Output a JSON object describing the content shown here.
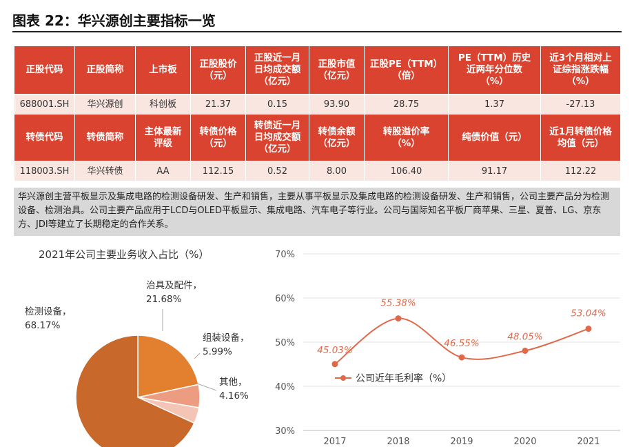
{
  "title": "图表 22：华兴源创主要指标一览",
  "table": {
    "header1": [
      "正股代码",
      "正股简称",
      "上市板",
      "正股股价\n（元）",
      "正股近一月\n日均成交额\n（亿元）",
      "正股市值\n（亿元）",
      "正股PE（TTM）\n（倍）",
      "PE（TTM）历史\n近两年分位数\n（%）",
      "近3个月相对上\n证综指涨跌幅\n（%）"
    ],
    "row1": [
      "688001.SH",
      "华兴源创",
      "科创板",
      "21.37",
      "0.15",
      "93.90",
      "28.75",
      "1.37",
      "-27.13"
    ],
    "header2": [
      "转债代码",
      "转债简称",
      "主体最新\n评级",
      "转债价格\n（元）",
      "转债近一月\n日均成交额\n（亿元）",
      "转债余额\n（亿元）",
      "转股溢价率\n（%）",
      "纯债价值（元）",
      "近1月转债价格\n均值（元）"
    ],
    "row2": [
      "118003.SH",
      "华兴转债",
      "AA",
      "112.15",
      "0.52",
      "8.00",
      "106.40",
      "91.17",
      "112.22"
    ]
  },
  "description": "华兴源创主营平板显示及集成电路的检测设备研发、生产和销售，主要从事平板显示及集成电路的检测设备研发、生产和销售，公司主要产品分为检测设备、检测治具。公司主要产品应用于LCD与OLED平板显示、集成电路、汽车电子等行业。公司与国际知名平板厂商苹果、三星、夏普、LG、京东方、JDI等建立了长期稳定的合作关系。",
  "pie": {
    "title": "2021年公司主要业务收入占比（%）",
    "slices": [
      {
        "name": "检测设备，",
        "value": 68.17,
        "label": "68.17%",
        "color": "#c8682a"
      },
      {
        "name": "治具及配件，",
        "value": 21.68,
        "label": "21.68%",
        "color": "#e2802f"
      },
      {
        "name": "组装设备，",
        "value": 5.99,
        "label": "5.99%",
        "color": "#ec9c80"
      },
      {
        "name": "其他，",
        "value": 4.16,
        "label": "4.16%",
        "color": "#f4c4b4"
      }
    ]
  },
  "chart_data": {
    "type": "line",
    "categories": [
      "2017",
      "2018",
      "2019",
      "2020",
      "2021"
    ],
    "series": [
      {
        "name": "公司近年毛利率（%）",
        "values": [
          45.03,
          55.38,
          46.55,
          48.05,
          53.04
        ],
        "labels": [
          "45.03%",
          "55.38%",
          "46.55%",
          "48.05%",
          "53.04%"
        ],
        "color": "#e0694a"
      }
    ],
    "yticks": [
      "30%",
      "40%",
      "50%",
      "60%",
      "70%"
    ],
    "ylim": [
      30,
      70
    ]
  }
}
